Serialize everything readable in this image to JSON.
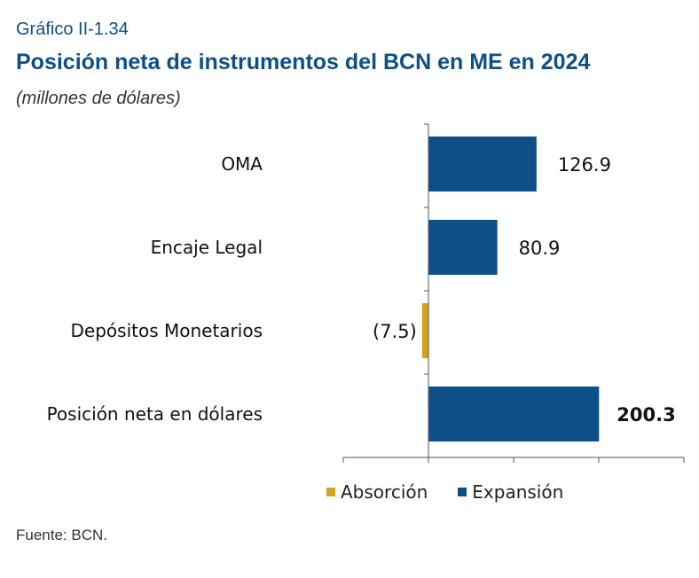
{
  "header": {
    "figure_label": "Gráfico II-1.34",
    "title": "Posición neta de instrumentos del BCN en ME en 2024",
    "subtitle": "(millones de dólares)"
  },
  "footer": {
    "source": "Fuente: BCN."
  },
  "colors": {
    "absorption": "#d4a21b",
    "expansion": "#0d4f86"
  },
  "chart_data": {
    "type": "bar",
    "orientation": "horizontal",
    "title": "Posición neta de instrumentos del BCN en ME en 2024",
    "subtitle": "(millones de dólares)",
    "categories": [
      "OMA",
      "Encaje Legal",
      "Depósitos Monetarios",
      "Posición neta en dólares"
    ],
    "values": [
      126.9,
      80.9,
      -7.5,
      200.3
    ],
    "value_labels": [
      "126.9",
      "80.9",
      "(7.5)",
      "200.3"
    ],
    "bold_labels": [
      false,
      false,
      false,
      true
    ],
    "series": [
      {
        "name": "Absorción",
        "color": "#d4a21b"
      },
      {
        "name": "Expansión",
        "color": "#0d4f86"
      }
    ],
    "xlim": [
      -100,
      300
    ],
    "xticks": [
      -100,
      0,
      100,
      200,
      300
    ],
    "tick_labels_shown": false,
    "grid": false,
    "legend_position": "bottom"
  }
}
